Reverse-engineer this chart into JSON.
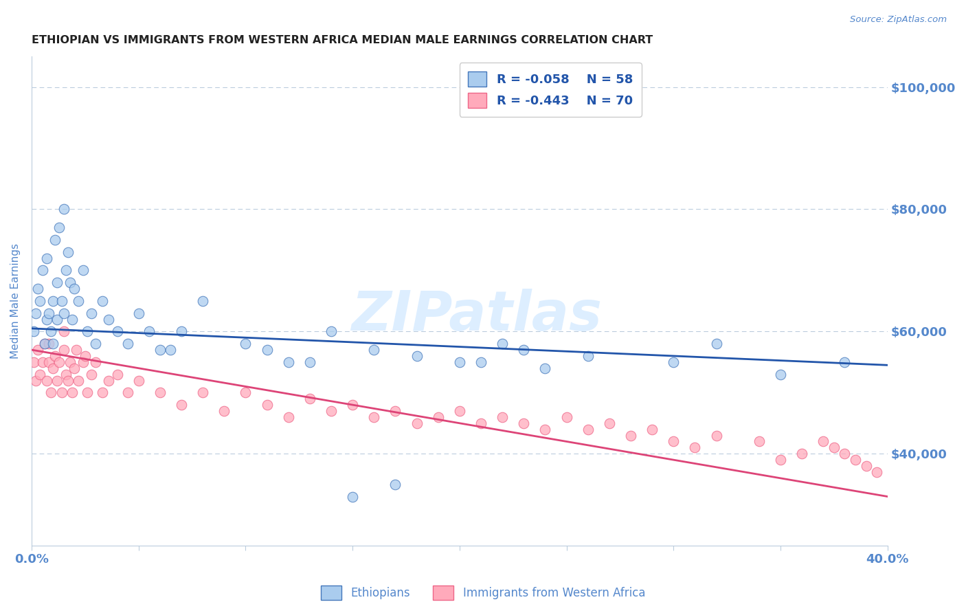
{
  "title": "ETHIOPIAN VS IMMIGRANTS FROM WESTERN AFRICA MEDIAN MALE EARNINGS CORRELATION CHART",
  "source": "Source: ZipAtlas.com",
  "ylabel": "Median Male Earnings",
  "xmin": 0.0,
  "xmax": 0.4,
  "ymin": 25000,
  "ymax": 105000,
  "yticks": [
    40000,
    60000,
    80000,
    100000
  ],
  "ytick_labels": [
    "$40,000",
    "$60,000",
    "$80,000",
    "$100,000"
  ],
  "xticks": [
    0.0,
    0.05,
    0.1,
    0.15,
    0.2,
    0.25,
    0.3,
    0.35,
    0.4
  ],
  "blue_color": "#AACCEE",
  "pink_color": "#FFAABB",
  "blue_edge_color": "#4477BB",
  "pink_edge_color": "#EE6688",
  "blue_line_color": "#2255AA",
  "pink_line_color": "#DD4477",
  "axis_color": "#5588CC",
  "grid_color": "#BBCCDD",
  "title_color": "#222222",
  "watermark": "ZIPatlas",
  "watermark_color": "#DDEEFF",
  "legend_r1": "R = -0.058",
  "legend_n1": "N = 58",
  "legend_r2": "R = -0.443",
  "legend_n2": "N = 70",
  "legend_label1": "Ethiopians",
  "legend_label2": "Immigrants from Western Africa",
  "blue_scatter_x": [
    0.001,
    0.002,
    0.003,
    0.004,
    0.005,
    0.006,
    0.007,
    0.007,
    0.008,
    0.009,
    0.01,
    0.01,
    0.011,
    0.012,
    0.012,
    0.013,
    0.014,
    0.015,
    0.015,
    0.016,
    0.017,
    0.018,
    0.019,
    0.02,
    0.022,
    0.024,
    0.026,
    0.028,
    0.03,
    0.033,
    0.036,
    0.04,
    0.045,
    0.05,
    0.06,
    0.07,
    0.08,
    0.1,
    0.12,
    0.14,
    0.16,
    0.18,
    0.2,
    0.22,
    0.24,
    0.26,
    0.3,
    0.32,
    0.35,
    0.38,
    0.055,
    0.065,
    0.15,
    0.17,
    0.21,
    0.23,
    0.11,
    0.13
  ],
  "blue_scatter_y": [
    60000,
    63000,
    67000,
    65000,
    70000,
    58000,
    62000,
    72000,
    63000,
    60000,
    65000,
    58000,
    75000,
    68000,
    62000,
    77000,
    65000,
    80000,
    63000,
    70000,
    73000,
    68000,
    62000,
    67000,
    65000,
    70000,
    60000,
    63000,
    58000,
    65000,
    62000,
    60000,
    58000,
    63000,
    57000,
    60000,
    65000,
    58000,
    55000,
    60000,
    57000,
    56000,
    55000,
    58000,
    54000,
    56000,
    55000,
    58000,
    53000,
    55000,
    60000,
    57000,
    33000,
    35000,
    55000,
    57000,
    57000,
    55000
  ],
  "pink_scatter_x": [
    0.001,
    0.002,
    0.003,
    0.004,
    0.005,
    0.006,
    0.007,
    0.008,
    0.009,
    0.01,
    0.011,
    0.012,
    0.013,
    0.014,
    0.015,
    0.016,
    0.017,
    0.018,
    0.019,
    0.02,
    0.021,
    0.022,
    0.024,
    0.026,
    0.028,
    0.03,
    0.033,
    0.036,
    0.04,
    0.045,
    0.05,
    0.06,
    0.07,
    0.08,
    0.09,
    0.1,
    0.11,
    0.12,
    0.13,
    0.14,
    0.15,
    0.16,
    0.17,
    0.18,
    0.19,
    0.2,
    0.21,
    0.22,
    0.23,
    0.24,
    0.25,
    0.26,
    0.27,
    0.28,
    0.29,
    0.3,
    0.32,
    0.34,
    0.36,
    0.37,
    0.375,
    0.38,
    0.385,
    0.39,
    0.395,
    0.35,
    0.31,
    0.008,
    0.015,
    0.025
  ],
  "pink_scatter_y": [
    55000,
    52000,
    57000,
    53000,
    55000,
    58000,
    52000,
    55000,
    50000,
    54000,
    56000,
    52000,
    55000,
    50000,
    57000,
    53000,
    52000,
    55000,
    50000,
    54000,
    57000,
    52000,
    55000,
    50000,
    53000,
    55000,
    50000,
    52000,
    53000,
    50000,
    52000,
    50000,
    48000,
    50000,
    47000,
    50000,
    48000,
    46000,
    49000,
    47000,
    48000,
    46000,
    47000,
    45000,
    46000,
    47000,
    45000,
    46000,
    45000,
    44000,
    46000,
    44000,
    45000,
    43000,
    44000,
    42000,
    43000,
    42000,
    40000,
    42000,
    41000,
    40000,
    39000,
    38000,
    37000,
    39000,
    41000,
    58000,
    60000,
    56000
  ]
}
